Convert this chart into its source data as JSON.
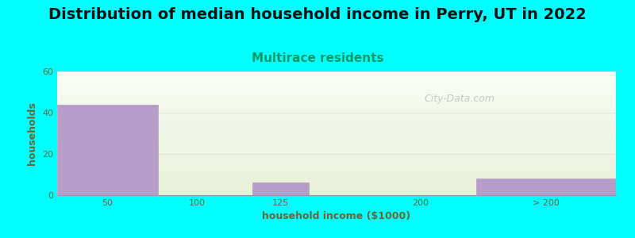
{
  "title": "Distribution of median household income in Perry, UT in 2022",
  "subtitle": "Multirace residents",
  "xlabel": "household income ($1000)",
  "ylabel": "households",
  "background_color": "#00ffff",
  "bar_color": "#b89cc8",
  "categories": [
    "50",
    "100",
    "125",
    "200",
    "> 200"
  ],
  "values": [
    44,
    0,
    6,
    0,
    8
  ],
  "bar_lefts": [
    0.0,
    1.0,
    1.75,
    2.75,
    3.75
  ],
  "bar_widths": [
    0.9,
    0.5,
    0.5,
    0.5,
    1.25
  ],
  "xlim": [
    0,
    5.0
  ],
  "xtick_positions": [
    0.45,
    1.25,
    2.0,
    3.25,
    4.375
  ],
  "ylim": [
    0,
    60
  ],
  "yticks": [
    0,
    20,
    40,
    60
  ],
  "title_fontsize": 14,
  "subtitle_fontsize": 11,
  "subtitle_color": "#009966",
  "axis_label_fontsize": 9,
  "tick_fontsize": 8,
  "tick_color": "#666633",
  "label_color": "#666633",
  "watermark_text": "City-Data.com",
  "watermark_color": "#c0c0c0",
  "plot_bg_top": "#e8f0d8",
  "plot_bg_bottom": "#f8fcf4"
}
